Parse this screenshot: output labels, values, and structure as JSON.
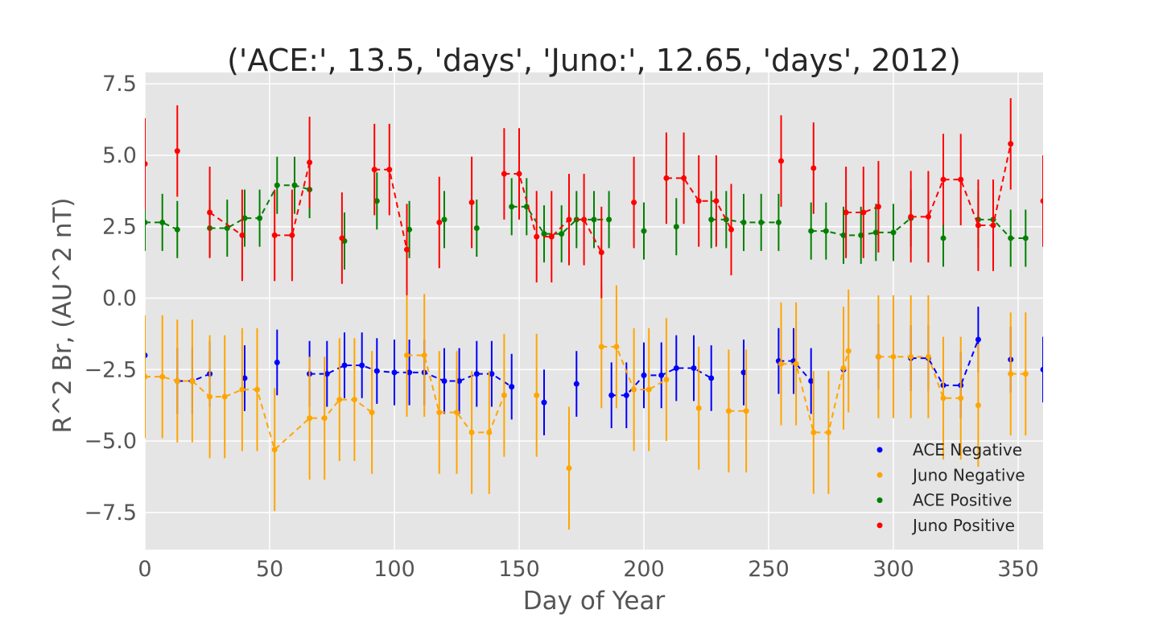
{
  "chart_data": {
    "type": "scatter",
    "title": "('ACE:', 13.5, 'days', 'Juno:', 12.65, 'days', 2012)",
    "xlabel": "Day of Year",
    "ylabel": "R^2 Br, (AU^2 nT)",
    "xlim": [
      0,
      360
    ],
    "ylim": [
      -8.8,
      7.9
    ],
    "xticks": [
      0,
      50,
      100,
      150,
      200,
      250,
      300,
      350
    ],
    "xtick_labels": [
      "0",
      "50",
      "100",
      "150",
      "200",
      "250",
      "300",
      "350"
    ],
    "yticks": [
      7.5,
      5.0,
      2.5,
      0.0,
      -2.5,
      -5.0,
      -7.5
    ],
    "ytick_labels": [
      "7.5",
      "5.0",
      "2.5",
      "0.0",
      "−2.5",
      "−5.0",
      "−7.5"
    ],
    "grid": true,
    "legend_position": "lower-right",
    "series": [
      {
        "name": "ACE Negative",
        "color": "#0000ff",
        "error": 1.15,
        "x": [
          0,
          13,
          19,
          26,
          40,
          53,
          66,
          73,
          80,
          87,
          93,
          100,
          106,
          112,
          120,
          126,
          133,
          139,
          147,
          160,
          173,
          187,
          193,
          200,
          207,
          213,
          220,
          227,
          240,
          254,
          260,
          267,
          280,
          294,
          307,
          314,
          320,
          327,
          334,
          347,
          360
        ],
        "y": [
          -2.0,
          -2.9,
          -2.9,
          -2.65,
          -2.8,
          -2.25,
          -2.65,
          -2.65,
          -2.35,
          -2.35,
          -2.55,
          -2.6,
          -2.6,
          -2.6,
          -2.9,
          -2.9,
          -2.65,
          -2.65,
          -3.1,
          -3.65,
          -3.0,
          -3.4,
          -3.4,
          -2.7,
          -2.7,
          -2.45,
          -2.45,
          -2.8,
          -2.6,
          -2.2,
          -2.2,
          -2.9,
          -2.5,
          -2.05,
          -2.1,
          -2.1,
          -3.05,
          -3.05,
          -1.45,
          -2.15,
          -2.5
        ],
        "segments": [
          [
            1,
            3
          ],
          [
            6,
            18
          ],
          [
            21,
            27
          ],
          [
            29,
            31
          ],
          [
            34,
            38
          ]
        ]
      },
      {
        "name": "Juno Negative",
        "color": "#ffa500",
        "error": 2.15,
        "x": [
          0,
          7,
          13,
          19,
          26,
          32,
          39,
          45,
          52,
          66,
          72,
          78,
          84,
          91,
          105,
          112,
          118,
          125,
          131,
          138,
          144,
          157,
          170,
          183,
          189,
          196,
          202,
          209,
          222,
          234,
          241,
          255,
          261,
          268,
          274,
          280,
          282,
          294,
          300,
          307,
          314,
          320,
          327,
          334,
          347,
          353
        ],
        "y": [
          -2.75,
          -2.75,
          -2.9,
          -2.9,
          -3.45,
          -3.45,
          -3.2,
          -3.2,
          -5.3,
          -4.2,
          -4.2,
          -3.55,
          -3.55,
          -4.0,
          -2.0,
          -2.0,
          -4.0,
          -4.0,
          -4.7,
          -4.7,
          -3.4,
          -3.4,
          -5.95,
          -1.7,
          -1.7,
          -3.2,
          -3.2,
          -2.85,
          -3.85,
          -3.95,
          -3.95,
          -2.3,
          -2.3,
          -4.7,
          -4.7,
          -2.45,
          -1.85,
          -2.05,
          -2.05,
          -2.05,
          -2.05,
          -3.5,
          -3.5,
          -3.75,
          -2.65,
          -2.65
        ],
        "segments": [
          [
            0,
            13
          ],
          [
            14,
            20
          ],
          [
            23,
            27
          ],
          [
            29,
            30
          ],
          [
            31,
            36
          ],
          [
            37,
            42
          ],
          [
            44,
            45
          ]
        ]
      },
      {
        "name": "ACE Positive",
        "color": "#008000",
        "error": 1.0,
        "x": [
          0,
          7,
          13,
          26,
          33,
          40,
          46,
          53,
          60,
          66,
          80,
          93,
          106,
          120,
          133,
          147,
          153,
          160,
          167,
          173,
          180,
          186,
          200,
          213,
          227,
          233,
          240,
          247,
          254,
          267,
          273,
          280,
          287,
          293,
          300,
          307,
          320,
          334,
          340,
          347,
          353
        ],
        "y": [
          2.65,
          2.65,
          2.4,
          2.45,
          2.45,
          2.8,
          2.8,
          3.95,
          3.95,
          3.8,
          2.0,
          3.4,
          2.4,
          2.75,
          2.45,
          3.2,
          3.2,
          2.25,
          2.25,
          2.75,
          2.75,
          2.75,
          2.35,
          2.5,
          2.75,
          2.75,
          2.65,
          2.65,
          2.65,
          2.35,
          2.35,
          2.2,
          2.2,
          2.3,
          2.3,
          2.8,
          2.1,
          2.75,
          2.75,
          2.1,
          2.1
        ],
        "segments": [
          [
            0,
            2
          ],
          [
            3,
            9
          ],
          [
            15,
            21
          ],
          [
            24,
            28
          ],
          [
            29,
            35
          ],
          [
            37,
            40
          ]
        ]
      },
      {
        "name": "Juno Positive",
        "color": "#ff0000",
        "error": 1.6,
        "x": [
          0,
          13,
          26,
          39,
          52,
          59,
          66,
          79,
          92,
          98,
          105,
          118,
          131,
          144,
          150,
          157,
          163,
          170,
          176,
          183,
          196,
          209,
          216,
          222,
          229,
          235,
          255,
          268,
          281,
          288,
          294,
          307,
          314,
          320,
          327,
          334,
          340,
          347,
          360
        ],
        "y": [
          4.7,
          5.15,
          3.0,
          2.2,
          2.2,
          2.2,
          4.75,
          2.1,
          4.5,
          4.5,
          1.7,
          2.65,
          3.35,
          4.35,
          4.35,
          2.15,
          2.15,
          2.75,
          2.75,
          1.6,
          3.35,
          4.2,
          4.2,
          3.4,
          3.4,
          2.4,
          4.8,
          4.55,
          3.0,
          3.0,
          3.2,
          2.85,
          2.85,
          4.15,
          4.15,
          2.55,
          2.55,
          5.4,
          3.4
        ],
        "segments": [
          [
            2,
            3
          ],
          [
            4,
            6
          ],
          [
            8,
            10
          ],
          [
            13,
            19
          ],
          [
            21,
            25
          ],
          [
            28,
            30
          ],
          [
            31,
            37
          ]
        ]
      }
    ]
  }
}
